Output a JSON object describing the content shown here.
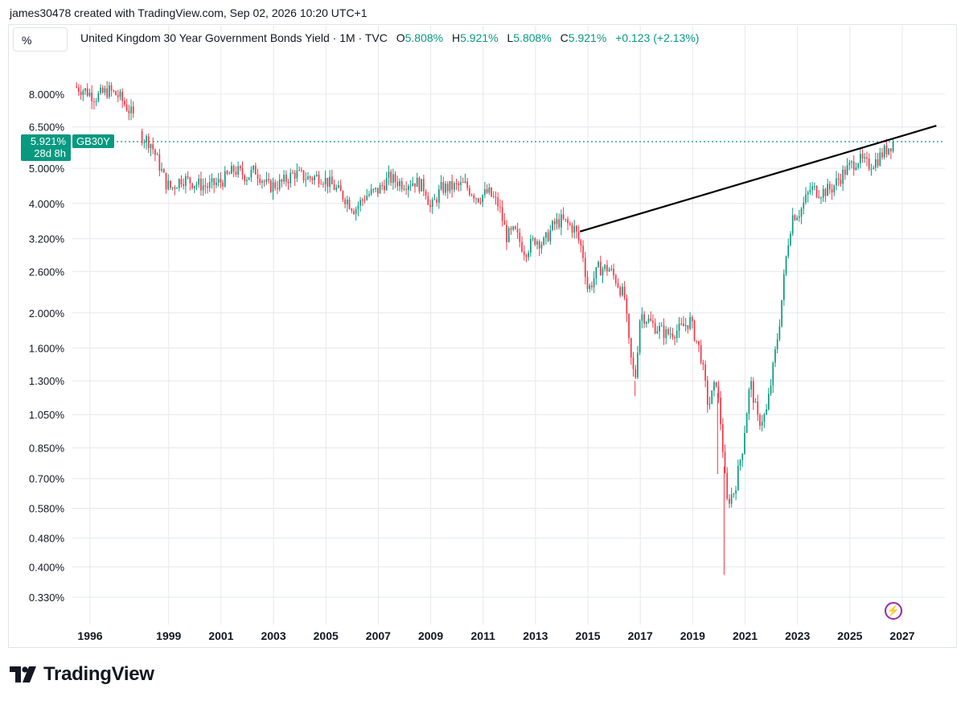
{
  "attribution": "james30478 created with TradingView.com, Sep 02, 2026 10:20 UTC+1",
  "scale_button": "%",
  "legend": {
    "title": "United Kingdom 30 Year Government Bonds Yield · 1M · TVC",
    "o_label": "O",
    "o_value": "5.808%",
    "h_label": "H",
    "h_value": "5.921%",
    "l_label": "L",
    "l_value": "5.808%",
    "c_label": "C",
    "c_value": "5.921%",
    "change": "+0.123 (+2.13%)"
  },
  "price_tag": {
    "value": "5.921%",
    "countdown": "28d 8h",
    "symbol": "GB30Y"
  },
  "brand": "TradingView",
  "colors": {
    "up": "#089981",
    "down": "#f23645",
    "trendline": "#000000",
    "grid": "#e6e8ed"
  },
  "chart_data": {
    "type": "candlestick",
    "scale": "log",
    "interval": "1M",
    "y_ticks": [
      "8.000%",
      "6.500%",
      "5.000%",
      "4.000%",
      "3.200%",
      "2.600%",
      "2.000%",
      "1.600%",
      "1.300%",
      "1.050%",
      "0.850%",
      "0.700%",
      "0.580%",
      "0.480%",
      "0.400%",
      "0.330%"
    ],
    "x_ticks": [
      "1996",
      "1999",
      "2001",
      "2003",
      "2005",
      "2007",
      "2009",
      "2011",
      "2013",
      "2015",
      "2017",
      "2019",
      "2021",
      "2023",
      "2025",
      "2027"
    ],
    "ylim": [
      0.29,
      10.5
    ],
    "xlim": [
      1995.0,
      2028.5
    ],
    "last_close": 5.921,
    "trendline": {
      "from": [
        2014.7,
        3.35
      ],
      "to": [
        2028.3,
        6.55
      ]
    },
    "close_path": [
      [
        1995.4,
        8.4
      ],
      [
        1995.8,
        8.2
      ],
      [
        1996.2,
        7.85
      ],
      [
        1996.7,
        8.2
      ],
      [
        1997.1,
        7.9
      ],
      [
        1997.6,
        7.05
      ],
      [
        1998.0,
        6.1
      ],
      [
        1998.3,
        5.9
      ],
      [
        1998.6,
        5.2
      ],
      [
        1998.9,
        4.55
      ],
      [
        1999.1,
        4.4
      ],
      [
        1999.5,
        4.7
      ],
      [
        2000.0,
        4.55
      ],
      [
        2000.5,
        4.45
      ],
      [
        2001.0,
        4.6
      ],
      [
        2001.5,
        4.95
      ],
      [
        2002.0,
        4.75
      ],
      [
        2002.3,
        4.95
      ],
      [
        2002.8,
        4.45
      ],
      [
        2003.3,
        4.55
      ],
      [
        2003.8,
        4.85
      ],
      [
        2004.3,
        4.7
      ],
      [
        2004.8,
        4.75
      ],
      [
        2005.3,
        4.45
      ],
      [
        2005.8,
        4.1
      ],
      [
        2006.1,
        3.85
      ],
      [
        2006.5,
        4.2
      ],
      [
        2007.0,
        4.35
      ],
      [
        2007.4,
        4.7
      ],
      [
        2007.9,
        4.55
      ],
      [
        2008.4,
        4.6
      ],
      [
        2008.8,
        4.4
      ],
      [
        2009.0,
        3.85
      ],
      [
        2009.4,
        4.4
      ],
      [
        2009.9,
        4.45
      ],
      [
        2010.3,
        4.5
      ],
      [
        2010.8,
        4.15
      ],
      [
        2011.2,
        4.3
      ],
      [
        2011.6,
        3.95
      ],
      [
        2011.9,
        3.25
      ],
      [
        2012.2,
        3.35
      ],
      [
        2012.6,
        2.95
      ],
      [
        2013.0,
        3.2
      ],
      [
        2013.3,
        3.1
      ],
      [
        2013.7,
        3.5
      ],
      [
        2014.0,
        3.6
      ],
      [
        2014.5,
        3.4
      ],
      [
        2014.8,
        2.95
      ],
      [
        2015.0,
        2.3
      ],
      [
        2015.4,
        2.65
      ],
      [
        2015.8,
        2.65
      ],
      [
        2016.1,
        2.45
      ],
      [
        2016.4,
        2.2
      ],
      [
        2016.6,
        1.55
      ],
      [
        2016.8,
        1.3
      ],
      [
        2017.0,
        2.0
      ],
      [
        2017.5,
        1.85
      ],
      [
        2018.0,
        1.75
      ],
      [
        2018.5,
        1.8
      ],
      [
        2018.9,
        1.9
      ],
      [
        2019.3,
        1.55
      ],
      [
        2019.6,
        1.1
      ],
      [
        2019.9,
        1.3
      ],
      [
        2020.1,
        0.95
      ],
      [
        2020.3,
        0.6
      ],
      [
        2020.6,
        0.65
      ],
      [
        2020.9,
        0.85
      ],
      [
        2021.2,
        1.3
      ],
      [
        2021.5,
        1.0
      ],
      [
        2021.8,
        1.05
      ],
      [
        2022.0,
        1.3
      ],
      [
        2022.3,
        1.85
      ],
      [
        2022.6,
        3.0
      ],
      [
        2022.8,
        3.7
      ],
      [
        2023.1,
        3.8
      ],
      [
        2023.5,
        4.4
      ],
      [
        2023.9,
        4.3
      ],
      [
        2024.3,
        4.4
      ],
      [
        2024.8,
        4.9
      ],
      [
        2025.3,
        5.3
      ],
      [
        2025.7,
        5.1
      ],
      [
        2026.0,
        5.25
      ],
      [
        2026.3,
        5.55
      ],
      [
        2026.67,
        5.921
      ]
    ]
  }
}
